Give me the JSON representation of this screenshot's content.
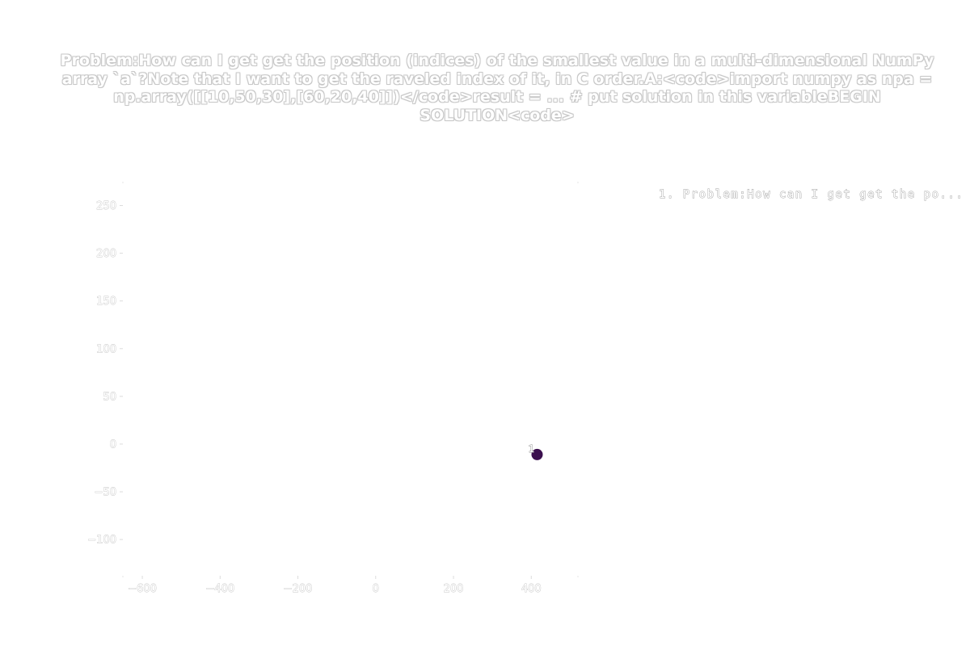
{
  "chart_data": {
    "type": "scatter",
    "title": "Problem:How can I get get the position (indices) of the smallest value in a multi-dimensional NumPy array `a`?Note that I want to get the raveled index of it, in C order.A:<code>import numpy as npa = np.array([[10,50,30],[60,20,40]])</code>result = ... # put solution in this variableBEGIN SOLUTION<code>",
    "xlim": [
      -650,
      520
    ],
    "ylim": [
      -138,
      275
    ],
    "x_ticks": [
      -600,
      -400,
      -200,
      0,
      200,
      400
    ],
    "y_ticks": [
      -100,
      -50,
      0,
      50,
      100,
      150,
      200,
      250
    ],
    "x_tick_labels": [
      "−600",
      "−400",
      "−200",
      "0",
      "200",
      "400"
    ],
    "y_tick_labels": [
      "−100",
      "−50",
      "0",
      "50",
      "100",
      "150",
      "200",
      "250"
    ],
    "grid": false,
    "legend_position": "top-right",
    "legend_entry": "1. Problem:How can I get get the po...",
    "points": [
      {
        "label": "1",
        "x": 415,
        "y": -11,
        "color": "#3b0f4e"
      }
    ]
  }
}
